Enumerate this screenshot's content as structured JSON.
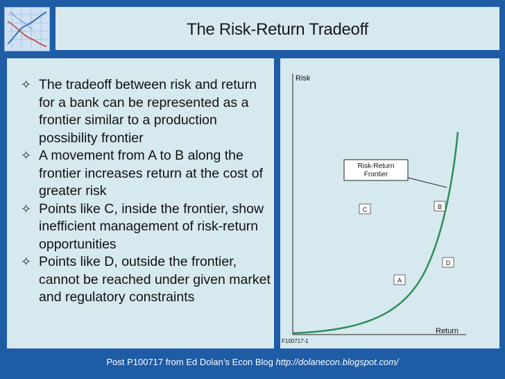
{
  "slide": {
    "title": "The Risk-Return Tradeoff",
    "bullets": [
      "The tradeoff between risk and return for a bank can be represented as a frontier similar to a production possibility frontier",
      "A movement from A to B along the frontier increases return at the cost of greater risk",
      "Points like C, inside the frontier, show inefficient management of risk-return opportunities",
      "Points like D, outside the frontier, cannot be reached under given market and regulatory constraints"
    ],
    "bullet_icon": "diamond-outline-icon"
  },
  "diagram": {
    "y_axis_label": "Risk",
    "x_axis_label": "Return",
    "curve_label_line1": "Risk-Return",
    "curve_label_line2": "Frontier",
    "figure_id": "F100717-1",
    "points": {
      "A": "A",
      "B": "B",
      "C": "C",
      "D": "D"
    },
    "curve_color": "#2e8b57"
  },
  "footer": {
    "text": "Post P100717 from Ed Dolan’s Econ Blog ",
    "url": "http://dolanecon.blogspot.com/"
  }
}
